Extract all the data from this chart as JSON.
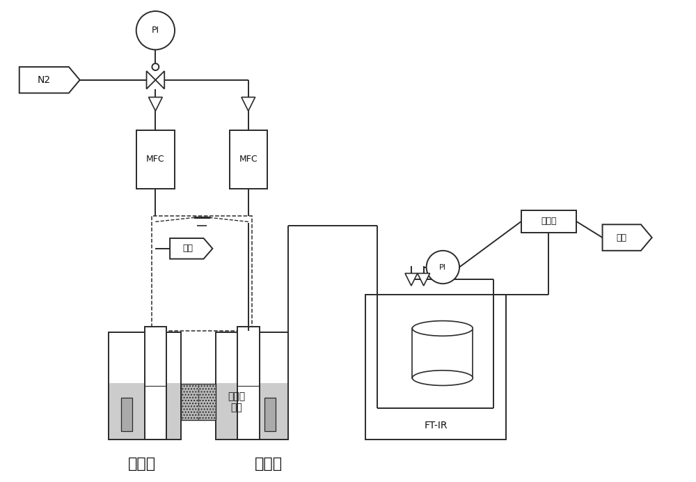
{
  "bg_color": "#ffffff",
  "line_color": "#2a2a2a",
  "gray_fill": "#b8b8b8",
  "light_gray": "#cccccc",
  "med_gray": "#aaaaaa",
  "dark_gray": "#777777",
  "text_color": "#111111",
  "figsize": [
    10.0,
    6.92
  ],
  "dpi": 100,
  "labels": {
    "N2": "N2",
    "PI": "PI",
    "MFC": "MFC",
    "porous": "多孔质\n隔膜",
    "exhaust1": "排气",
    "exhaust2": "排气",
    "anode": "阳极室",
    "cathode": "阴极室",
    "ftir": "FT-IR",
    "integrator": "积分计"
  }
}
